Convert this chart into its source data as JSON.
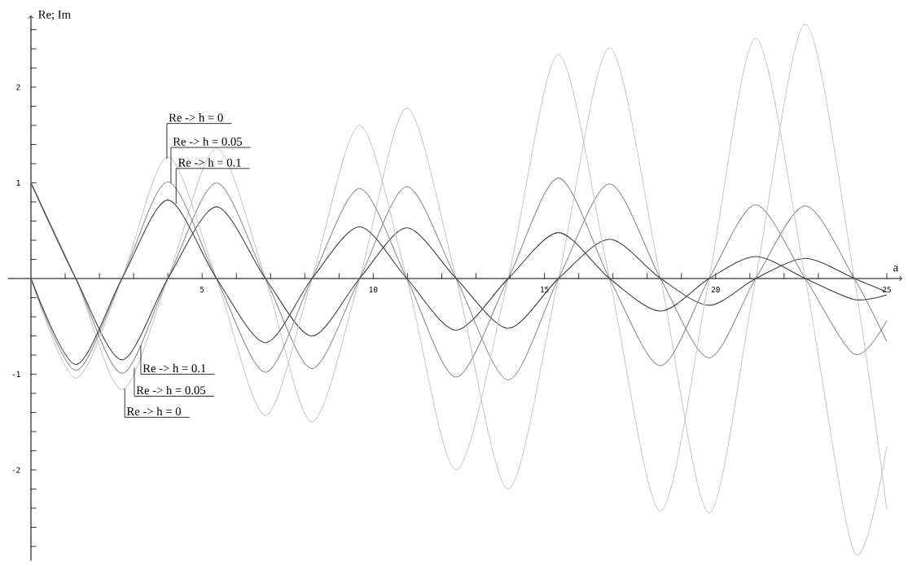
{
  "chart_data": {
    "type": "line",
    "xlabel": "a",
    "ylabel": "Re; Im",
    "xlim": [
      -0.67,
      25.45
    ],
    "ylim": [
      -2.95,
      2.75
    ],
    "xticks": [
      {
        "value": 1,
        "label": null
      },
      {
        "value": 2,
        "label": null
      },
      {
        "value": 3,
        "label": null
      },
      {
        "value": 4,
        "label": null
      },
      5,
      {
        "value": 6,
        "label": null
      },
      {
        "value": 7,
        "label": null
      },
      {
        "value": 8,
        "label": null
      },
      {
        "value": 9,
        "label": null
      },
      10,
      {
        "value": 11,
        "label": null
      },
      {
        "value": 12,
        "label": null
      },
      {
        "value": 13,
        "label": null
      },
      {
        "value": 14,
        "label": null
      },
      15,
      {
        "value": 16,
        "label": null
      },
      {
        "value": 17,
        "label": null
      },
      {
        "value": 18,
        "label": null
      },
      {
        "value": 19,
        "label": null
      },
      20,
      {
        "value": 21,
        "label": null
      },
      {
        "value": 22,
        "label": null
      },
      {
        "value": 23,
        "label": null
      },
      {
        "value": 24,
        "label": null
      },
      25
    ],
    "yticks": [
      {
        "value": -2.8,
        "label": null
      },
      {
        "value": -2.6,
        "label": null
      },
      {
        "value": -2.4,
        "label": null
      },
      {
        "value": -2.2,
        "label": null
      },
      -2,
      {
        "value": -1.8,
        "label": null
      },
      {
        "value": -1.6,
        "label": null
      },
      {
        "value": -1.4,
        "label": null
      },
      {
        "value": -1.2,
        "label": null
      },
      -1,
      {
        "value": -0.8,
        "label": null
      },
      {
        "value": -0.6,
        "label": null
      },
      {
        "value": -0.4,
        "label": null
      },
      {
        "value": -0.2,
        "label": null
      },
      {
        "value": 0.2,
        "label": null
      },
      {
        "value": 0.4,
        "label": null
      },
      {
        "value": 0.6,
        "label": null
      },
      {
        "value": 0.8,
        "label": null
      },
      1,
      {
        "value": 1.2,
        "label": null
      },
      {
        "value": 1.4,
        "label": null
      },
      {
        "value": 1.6,
        "label": null
      },
      {
        "value": 1.8,
        "label": null
      },
      2,
      {
        "value": 2.2,
        "label": null
      },
      {
        "value": 2.4,
        "label": null
      },
      {
        "value": 2.6,
        "label": null
      }
    ],
    "series": [
      {
        "color": "#c8c8c8",
        "x": [
          0,
          1.31,
          2.66,
          4.0,
          5.42,
          6.85,
          8.21,
          9.6,
          10.98,
          12.42,
          13.94,
          15.41,
          16.9,
          18.39,
          19.81,
          21.17,
          22.62,
          24.05,
          25
        ],
        "values": [
          1,
          0,
          -1.16,
          0,
          1.36,
          0,
          -1.5,
          0,
          1.78,
          0,
          -2.2,
          0,
          2.41,
          0,
          -2.45,
          0,
          2.66,
          0,
          -2.41
        ]
      },
      {
        "color": "#8c8c8c",
        "x": [
          0,
          1.31,
          2.66,
          4.0,
          5.42,
          6.85,
          8.21,
          9.6,
          10.98,
          12.42,
          13.94,
          15.41,
          16.9,
          18.39,
          19.81,
          21.17,
          22.62,
          24.05,
          25
        ],
        "values": [
          1,
          0,
          -0.99,
          0,
          1.0,
          0,
          -0.94,
          0,
          0.96,
          0,
          -1.06,
          0,
          0.99,
          0,
          -0.83,
          0,
          0.76,
          0,
          -0.66
        ]
      },
      {
        "color": "#3c3c3c",
        "x": [
          0,
          1.31,
          2.66,
          4.0,
          5.42,
          6.85,
          8.21,
          9.6,
          10.98,
          12.42,
          13.94,
          15.41,
          16.9,
          18.39,
          19.81,
          21.17,
          22.62,
          24.05,
          25
        ],
        "values": [
          1,
          0,
          -0.85,
          0,
          0.75,
          0,
          -0.6,
          0,
          0.53,
          0,
          -0.52,
          0,
          0.41,
          0,
          -0.28,
          0,
          0.21,
          0,
          -0.14
        ]
      },
      {
        "color": "#c8c8c8",
        "x": [
          0,
          1.31,
          2.66,
          4.0,
          5.42,
          6.85,
          8.21,
          9.6,
          10.98,
          12.42,
          13.94,
          15.41,
          16.9,
          18.39,
          19.81,
          21.17,
          22.62,
          24.05,
          25
        ],
        "values": [
          0,
          -1.04,
          0,
          1.27,
          0,
          -1.43,
          0,
          1.6,
          0,
          -2.0,
          0,
          2.34,
          0,
          -2.43,
          0,
          2.51,
          0,
          -2.86,
          -1.75
        ]
      },
      {
        "color": "#8c8c8c",
        "x": [
          0,
          1.31,
          2.66,
          4.0,
          5.42,
          6.85,
          8.21,
          9.6,
          10.98,
          12.42,
          13.94,
          15.41,
          16.9,
          18.39,
          19.81,
          21.17,
          22.62,
          24.05,
          25
        ],
        "values": [
          0,
          -0.96,
          0,
          1.01,
          0,
          -0.98,
          0,
          0.94,
          0,
          -1.03,
          0,
          1.05,
          0,
          -0.91,
          0,
          0.77,
          0,
          -0.79,
          -0.44
        ]
      },
      {
        "color": "#3c3c3c",
        "x": [
          0,
          1.31,
          2.66,
          4.0,
          5.42,
          6.85,
          8.21,
          9.6,
          10.98,
          12.42,
          13.94,
          15.41,
          16.9,
          18.39,
          19.81,
          21.17,
          22.62,
          24.05,
          25
        ],
        "values": [
          0,
          -0.9,
          0,
          0.82,
          0,
          -0.67,
          0,
          0.54,
          0,
          -0.54,
          0,
          0.48,
          0,
          -0.34,
          0,
          0.23,
          0,
          -0.22,
          -0.17
        ]
      }
    ],
    "annotations": [
      {
        "text": "Re -> h = 0",
        "x": 3.97,
        "y": 1.25
      },
      {
        "text": "Re -> h = 0.05",
        "x": 4.09,
        "y": 1.0
      },
      {
        "text": "Re -> h = 0.1",
        "x": 4.24,
        "y": 0.78
      },
      {
        "text": "Re -> h = 0.1",
        "x": 3.21,
        "y": -0.7
      },
      {
        "text": "Re -> h = 0.05",
        "x": 3.02,
        "y": -0.93
      },
      {
        "text": "Re -> h = 0",
        "x": 2.74,
        "y": -1.15
      }
    ]
  }
}
